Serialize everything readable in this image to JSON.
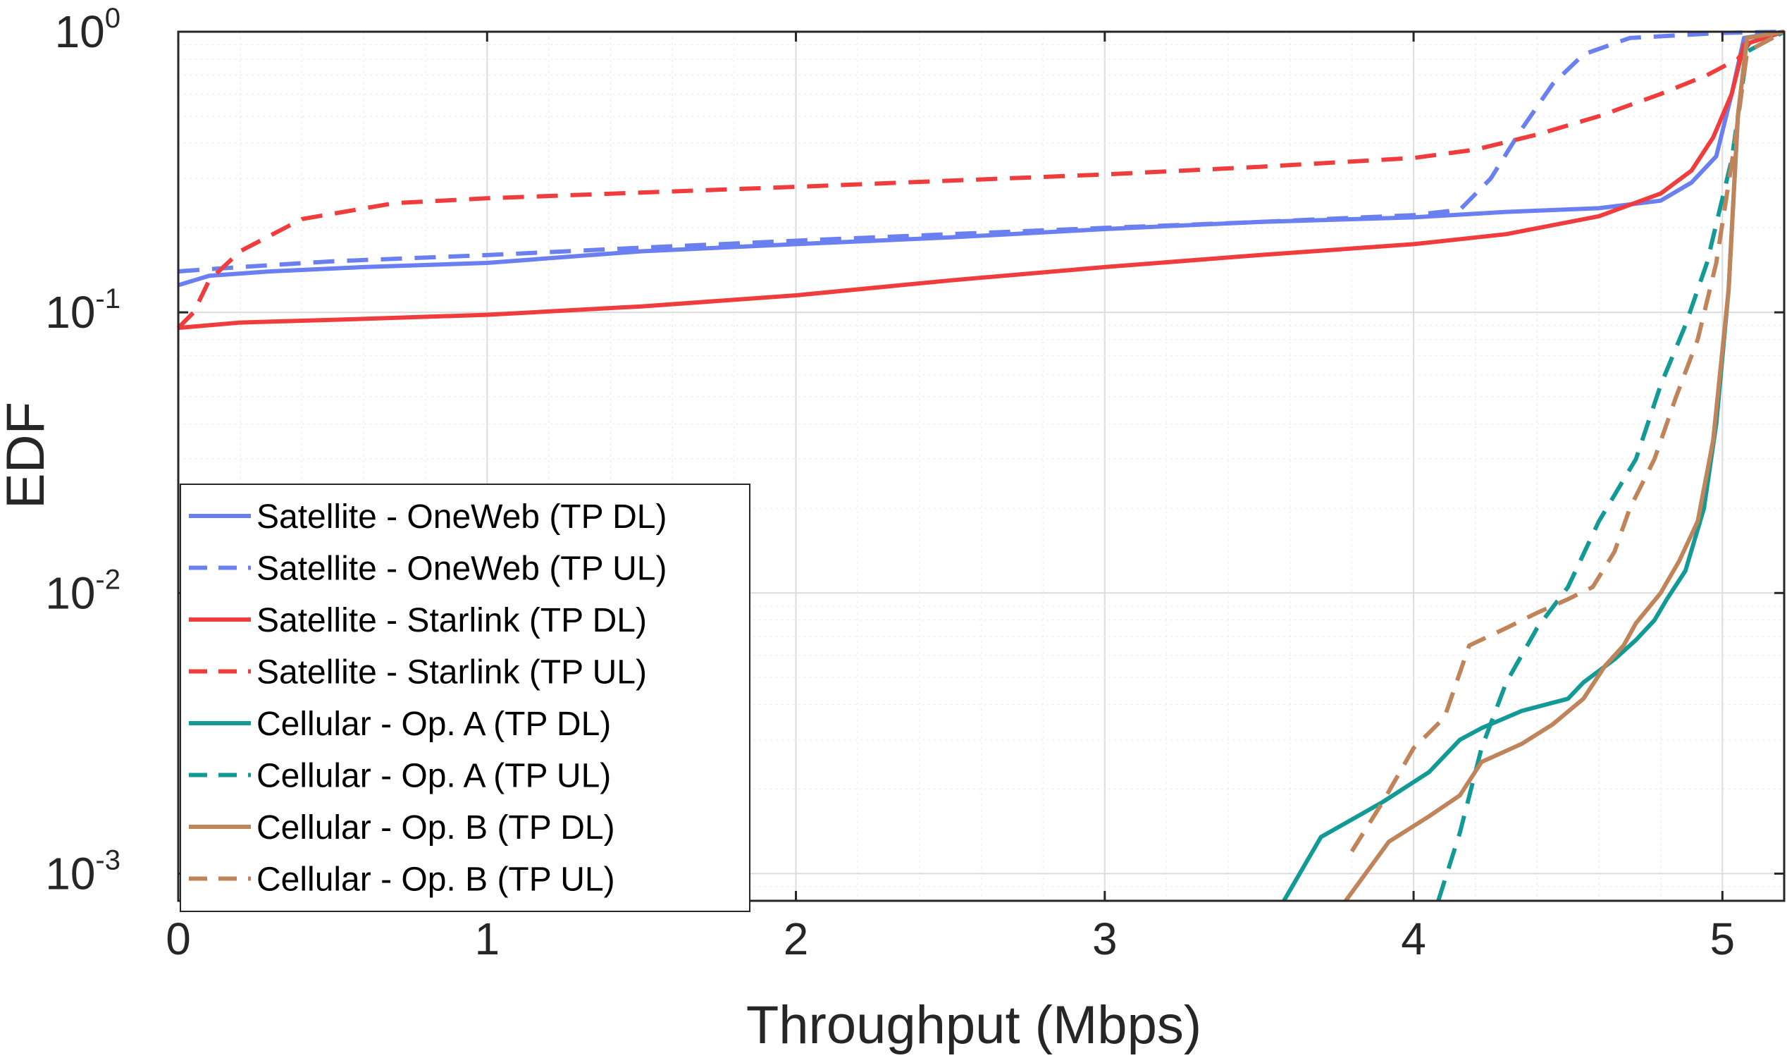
{
  "chart_data": {
    "type": "line",
    "title": "",
    "xlabel": "Throughput (Mbps)",
    "ylabel": "EDF",
    "xlim": [
      0,
      5.2
    ],
    "ylim": [
      0.0008,
      1
    ],
    "yscale": "log",
    "grid": true,
    "legend_position": "bottom-left",
    "x_ticks": [
      "0",
      "1",
      "2",
      "3",
      "4",
      "5"
    ],
    "y_ticks": [
      {
        "base": "10",
        "exp": "0",
        "value": 1
      },
      {
        "base": "10",
        "exp": "-1",
        "value": 0.1
      },
      {
        "base": "10",
        "exp": "-2",
        "value": 0.01
      },
      {
        "base": "10",
        "exp": "-3",
        "value": 0.001
      }
    ],
    "series": [
      {
        "name": "Satellite - OneWeb (TP DL)",
        "color": "#6a7ff0",
        "dash": "solid",
        "points": [
          [
            0,
            0.125
          ],
          [
            0.1,
            0.135
          ],
          [
            0.3,
            0.14
          ],
          [
            0.6,
            0.145
          ],
          [
            1,
            0.15
          ],
          [
            1.5,
            0.165
          ],
          [
            2,
            0.175
          ],
          [
            2.5,
            0.185
          ],
          [
            3,
            0.198
          ],
          [
            3.5,
            0.21
          ],
          [
            4,
            0.218
          ],
          [
            4.3,
            0.228
          ],
          [
            4.6,
            0.235
          ],
          [
            4.8,
            0.25
          ],
          [
            4.9,
            0.29
          ],
          [
            4.98,
            0.36
          ],
          [
            5.03,
            0.6
          ],
          [
            5.07,
            0.95
          ],
          [
            5.2,
            1.0
          ]
        ]
      },
      {
        "name": "Satellite - OneWeb (TP UL)",
        "color": "#6a7ff0",
        "dash": "dashed",
        "points": [
          [
            0,
            0.14
          ],
          [
            0.2,
            0.145
          ],
          [
            0.5,
            0.152
          ],
          [
            1,
            0.16
          ],
          [
            1.5,
            0.17
          ],
          [
            2,
            0.18
          ],
          [
            2.5,
            0.19
          ],
          [
            3,
            0.2
          ],
          [
            3.5,
            0.21
          ],
          [
            4,
            0.222
          ],
          [
            4.15,
            0.232
          ],
          [
            4.25,
            0.3
          ],
          [
            4.35,
            0.45
          ],
          [
            4.45,
            0.65
          ],
          [
            4.55,
            0.83
          ],
          [
            4.7,
            0.95
          ],
          [
            5,
            0.99
          ],
          [
            5.2,
            1.0
          ]
        ]
      },
      {
        "name": "Satellite - Starlink (TP DL)",
        "color": "#f03c3c",
        "dash": "solid",
        "points": [
          [
            0,
            0.088
          ],
          [
            0.2,
            0.092
          ],
          [
            0.5,
            0.094
          ],
          [
            1,
            0.098
          ],
          [
            1.5,
            0.105
          ],
          [
            2,
            0.115
          ],
          [
            2.5,
            0.13
          ],
          [
            3,
            0.145
          ],
          [
            3.5,
            0.16
          ],
          [
            4,
            0.175
          ],
          [
            4.3,
            0.19
          ],
          [
            4.6,
            0.22
          ],
          [
            4.8,
            0.265
          ],
          [
            4.9,
            0.32
          ],
          [
            4.97,
            0.42
          ],
          [
            5.03,
            0.6
          ],
          [
            5.07,
            0.9
          ],
          [
            5.2,
            1.0
          ]
        ]
      },
      {
        "name": "Satellite - Starlink (TP UL)",
        "color": "#f03c3c",
        "dash": "dashed",
        "points": [
          [
            0,
            0.088
          ],
          [
            0.05,
            0.1
          ],
          [
            0.1,
            0.13
          ],
          [
            0.2,
            0.165
          ],
          [
            0.4,
            0.215
          ],
          [
            0.7,
            0.245
          ],
          [
            1,
            0.255
          ],
          [
            2,
            0.28
          ],
          [
            3,
            0.31
          ],
          [
            3.5,
            0.33
          ],
          [
            4,
            0.355
          ],
          [
            4.2,
            0.38
          ],
          [
            4.4,
            0.43
          ],
          [
            4.6,
            0.5
          ],
          [
            4.8,
            0.6
          ],
          [
            4.95,
            0.7
          ],
          [
            5.05,
            0.8
          ],
          [
            5.1,
            0.95
          ],
          [
            5.2,
            1.0
          ]
        ]
      },
      {
        "name": "Cellular - Op. A (TP DL)",
        "color": "#129a96",
        "dash": "solid",
        "points": [
          [
            3.58,
            0.0008
          ],
          [
            3.7,
            0.00135
          ],
          [
            3.9,
            0.0018
          ],
          [
            4.05,
            0.0023
          ],
          [
            4.15,
            0.003
          ],
          [
            4.22,
            0.0033
          ],
          [
            4.35,
            0.0038
          ],
          [
            4.5,
            0.0042
          ],
          [
            4.55,
            0.0048
          ],
          [
            4.65,
            0.0058
          ],
          [
            4.72,
            0.0068
          ],
          [
            4.78,
            0.008
          ],
          [
            4.82,
            0.0095
          ],
          [
            4.88,
            0.012
          ],
          [
            4.94,
            0.02
          ],
          [
            4.98,
            0.04
          ],
          [
            5.02,
            0.12
          ],
          [
            5.05,
            0.5
          ],
          [
            5.08,
            0.95
          ],
          [
            5.2,
            1.0
          ]
        ]
      },
      {
        "name": "Cellular - Op. A (TP UL)",
        "color": "#129a96",
        "dash": "dashed",
        "points": [
          [
            4.08,
            0.0008
          ],
          [
            4.15,
            0.0014
          ],
          [
            4.22,
            0.0028
          ],
          [
            4.3,
            0.0048
          ],
          [
            4.4,
            0.0075
          ],
          [
            4.5,
            0.0105
          ],
          [
            4.6,
            0.018
          ],
          [
            4.72,
            0.03
          ],
          [
            4.8,
            0.055
          ],
          [
            4.88,
            0.09
          ],
          [
            4.95,
            0.15
          ],
          [
            5.03,
            0.35
          ],
          [
            5.08,
            0.85
          ],
          [
            5.2,
            1.0
          ]
        ]
      },
      {
        "name": "Cellular - Op. B (TP DL)",
        "color": "#c0845a",
        "dash": "solid",
        "points": [
          [
            3.78,
            0.0008
          ],
          [
            3.92,
            0.0013
          ],
          [
            4.05,
            0.0016
          ],
          [
            4.15,
            0.0019
          ],
          [
            4.22,
            0.0025
          ],
          [
            4.35,
            0.0029
          ],
          [
            4.45,
            0.0034
          ],
          [
            4.55,
            0.0042
          ],
          [
            4.62,
            0.0055
          ],
          [
            4.68,
            0.0065
          ],
          [
            4.72,
            0.0078
          ],
          [
            4.8,
            0.01
          ],
          [
            4.86,
            0.013
          ],
          [
            4.92,
            0.018
          ],
          [
            4.97,
            0.035
          ],
          [
            5.02,
            0.12
          ],
          [
            5.05,
            0.5
          ],
          [
            5.08,
            0.95
          ],
          [
            5.2,
            1.0
          ]
        ]
      },
      {
        "name": "Cellular - Op. B (TP UL)",
        "color": "#c0845a",
        "dash": "dashed",
        "points": [
          [
            3.8,
            0.0012
          ],
          [
            3.9,
            0.0018
          ],
          [
            4.0,
            0.0028
          ],
          [
            4.1,
            0.0036
          ],
          [
            4.18,
            0.0065
          ],
          [
            4.3,
            0.0075
          ],
          [
            4.4,
            0.0085
          ],
          [
            4.5,
            0.0095
          ],
          [
            4.58,
            0.0105
          ],
          [
            4.65,
            0.014
          ],
          [
            4.7,
            0.02
          ],
          [
            4.78,
            0.03
          ],
          [
            4.85,
            0.05
          ],
          [
            4.92,
            0.08
          ],
          [
            4.98,
            0.15
          ],
          [
            5.04,
            0.4
          ],
          [
            5.08,
            0.85
          ],
          [
            5.2,
            1.0
          ]
        ]
      }
    ]
  }
}
